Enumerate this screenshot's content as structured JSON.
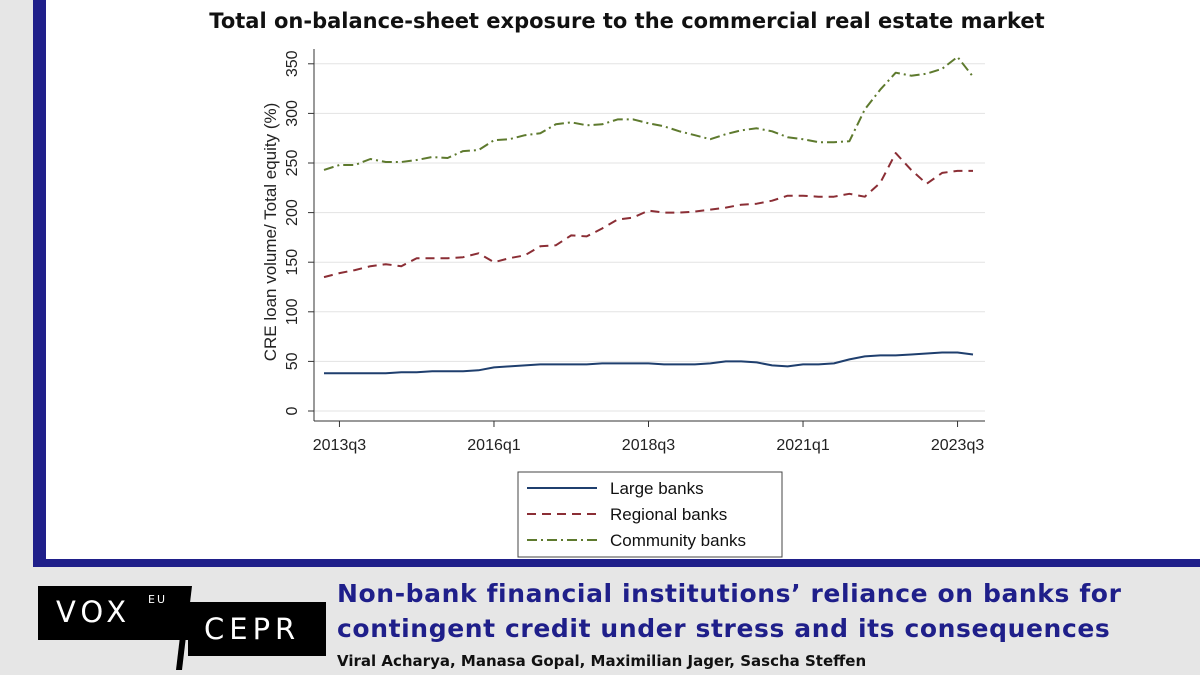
{
  "footer": {
    "logo_vox": "VOX",
    "logo_vox_super": "EU",
    "logo_cepr": "CEPR",
    "article_title_line1": "Non-bank financial institutions’ reliance on banks for",
    "article_title_line2": "contingent credit under stress and its consequences",
    "authors": "Viral Acharya, Manasa Gopal, Maximilian Jager, Sascha Steffen"
  },
  "colors": {
    "frame": "#1f1f8a",
    "large_banks": "#1f3f6e",
    "regional_banks": "#8b2e35",
    "community_banks": "#5e7a2e"
  },
  "chart_data": {
    "type": "line",
    "title": "Total on-balance-sheet exposure to the commercial real estate market",
    "ylabel": "CRE loan volume/ Total equity (%)",
    "xlabel": "",
    "ylim": [
      0,
      360
    ],
    "yticks": [
      0,
      50,
      100,
      150,
      200,
      250,
      300,
      350
    ],
    "x_tick_labels": [
      "2013q3",
      "2016q1",
      "2018q3",
      "2021q1",
      "2023q3"
    ],
    "x": [
      "2013q2",
      "2013q3",
      "2013q4",
      "2014q1",
      "2014q2",
      "2014q3",
      "2014q4",
      "2015q1",
      "2015q2",
      "2015q3",
      "2015q4",
      "2016q1",
      "2016q2",
      "2016q3",
      "2016q4",
      "2017q1",
      "2017q2",
      "2017q3",
      "2017q4",
      "2018q1",
      "2018q2",
      "2018q3",
      "2018q4",
      "2019q1",
      "2019q2",
      "2019q3",
      "2019q4",
      "2020q1",
      "2020q2",
      "2020q3",
      "2020q4",
      "2021q1",
      "2021q2",
      "2021q3",
      "2021q4",
      "2022q1",
      "2022q2",
      "2022q3",
      "2022q4",
      "2023q1",
      "2023q2",
      "2023q3",
      "2023q4"
    ],
    "grid": "horizontal",
    "legend_position": "bottom",
    "series": [
      {
        "name": "Large banks",
        "style": "solid",
        "values": [
          38,
          38,
          38,
          38,
          38,
          39,
          39,
          40,
          40,
          40,
          41,
          44,
          45,
          46,
          47,
          47,
          47,
          47,
          48,
          48,
          48,
          48,
          47,
          47,
          47,
          48,
          50,
          50,
          49,
          46,
          45,
          47,
          47,
          48,
          52,
          55,
          56,
          56,
          57,
          58,
          59,
          59,
          57
        ]
      },
      {
        "name": "Regional banks",
        "style": "dash",
        "values": [
          135,
          139,
          142,
          146,
          148,
          146,
          154,
          154,
          154,
          155,
          159,
          150,
          154,
          157,
          166,
          167,
          177,
          176,
          184,
          193,
          195,
          202,
          200,
          200,
          201,
          203,
          205,
          208,
          209,
          212,
          217,
          217,
          216,
          216,
          219,
          216,
          230,
          260,
          243,
          229,
          240,
          242,
          242
        ]
      },
      {
        "name": "Community banks",
        "style": "dashdot",
        "values": [
          243,
          248,
          248,
          254,
          251,
          251,
          253,
          256,
          255,
          262,
          263,
          273,
          274,
          278,
          280,
          289,
          291,
          288,
          289,
          294,
          294,
          290,
          287,
          282,
          278,
          274,
          279,
          283,
          285,
          282,
          276,
          274,
          271,
          271,
          272,
          304,
          324,
          341,
          338,
          340,
          345,
          357,
          337
        ]
      }
    ]
  }
}
